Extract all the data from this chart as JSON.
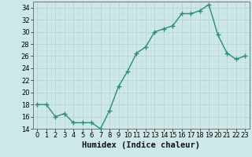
{
  "x": [
    0,
    1,
    2,
    3,
    4,
    5,
    6,
    7,
    8,
    9,
    10,
    11,
    12,
    13,
    14,
    15,
    16,
    17,
    18,
    19,
    20,
    21,
    22,
    23
  ],
  "y": [
    18,
    18,
    16,
    16.5,
    15,
    15,
    15,
    14,
    17,
    21,
    23.5,
    26.5,
    27.5,
    30,
    30.5,
    31,
    33,
    33,
    33.5,
    34.5,
    29.5,
    26.5,
    25.5,
    26
  ],
  "line_color": "#2d8b78",
  "bg_color": "#cce8e8",
  "grid_major_color": "#b8d4d0",
  "grid_minor_color": "#c4deda",
  "xlabel": "Humidex (Indice chaleur)",
  "ylim": [
    14,
    35
  ],
  "xlim": [
    -0.5,
    23.5
  ],
  "yticks": [
    14,
    16,
    18,
    20,
    22,
    24,
    26,
    28,
    30,
    32,
    34
  ],
  "xticks": [
    0,
    1,
    2,
    3,
    4,
    5,
    6,
    7,
    8,
    9,
    10,
    11,
    12,
    13,
    14,
    15,
    16,
    17,
    18,
    19,
    20,
    21,
    22,
    23
  ],
  "xlabel_fontsize": 7.5,
  "tick_fontsize": 6,
  "line_width": 1.0,
  "marker_size": 2.5
}
